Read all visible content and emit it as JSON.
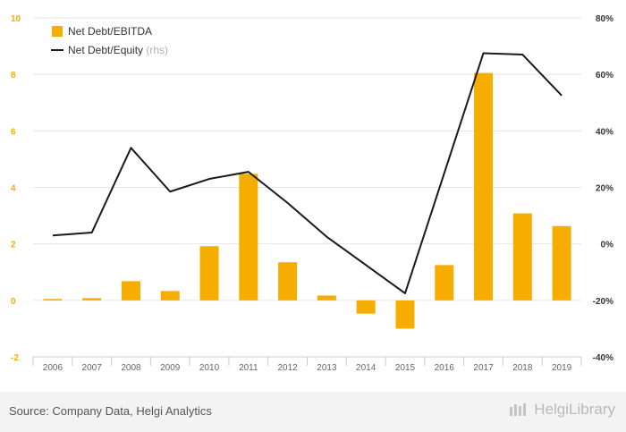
{
  "chart_data": {
    "type": "bar+line",
    "categories": [
      "2006",
      "2007",
      "2008",
      "2009",
      "2010",
      "2011",
      "2012",
      "2013",
      "2014",
      "2015",
      "2016",
      "2017",
      "2018",
      "2019"
    ],
    "series": [
      {
        "name": "Net Debt/EBITDA",
        "type": "bar",
        "axis": "left",
        "color": "#f5ae00",
        "values": [
          0.05,
          0.08,
          0.68,
          0.33,
          1.92,
          4.48,
          1.35,
          0.17,
          -0.47,
          -1.0,
          1.25,
          8.05,
          3.08,
          2.63
        ]
      },
      {
        "name": "Net Debt/Equity",
        "name_suffix": "(rhs)",
        "type": "line",
        "axis": "right",
        "color": "#1a1a1a",
        "values": [
          3.0,
          4.0,
          34.0,
          18.5,
          23.0,
          25.5,
          14.5,
          2.5,
          -7.5,
          -17.5,
          25.0,
          67.5,
          67.0,
          52.5
        ]
      }
    ],
    "y_left": {
      "min": -2,
      "max": 10,
      "ticks": [
        "-2",
        "0",
        "2",
        "4",
        "6",
        "8",
        "10"
      ],
      "tick_color": "#f5ae00"
    },
    "y_right": {
      "min": -40,
      "max": 80,
      "ticks": [
        "-40%",
        "-20%",
        "0%",
        "20%",
        "40%",
        "60%",
        "80%"
      ]
    },
    "grid": true,
    "legend_position": "top-left"
  },
  "footer": {
    "source": "Source: Company Data, Helgi Analytics",
    "brand": "HelgiLibrary"
  }
}
